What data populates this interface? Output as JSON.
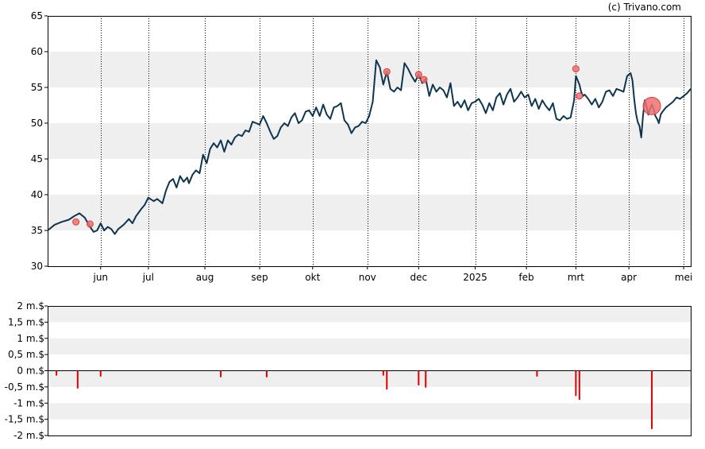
{
  "credit": "(c) Trivano.com",
  "colors": {
    "price_line": "#0d3550",
    "band": "#efefef",
    "marker_fill": "#f07070",
    "marker_stroke": "#d84040",
    "volume_bar": "#e00000",
    "grid": "#000000",
    "axis": "#000000"
  },
  "chart_data": [
    {
      "type": "line",
      "title": "",
      "xlabel": "",
      "ylabel": "",
      "ylim": [
        30,
        65
      ],
      "yticks": [
        "30",
        "35",
        "40",
        "45",
        "50",
        "55",
        "60",
        "65"
      ],
      "ytick_values": [
        30,
        35,
        40,
        45,
        50,
        55,
        60,
        65
      ],
      "shaded_bands": [
        [
          35,
          40
        ],
        [
          45,
          50
        ],
        [
          55,
          60
        ]
      ],
      "xlim": [
        0,
        364
      ],
      "month_labels": [
        "jun",
        "jul",
        "aug",
        "sep",
        "okt",
        "nov",
        "dec",
        "2025",
        "feb",
        "mrt",
        "apr",
        "mei"
      ],
      "month_positions": [
        30,
        57,
        89,
        120,
        150,
        181,
        210,
        242,
        271,
        299,
        329,
        360
      ],
      "grid": "vertical dotted at month starts",
      "series": [
        {
          "values": [
            [
              0,
              35.0
            ],
            [
              4,
              35.8
            ],
            [
              8,
              36.2
            ],
            [
              12,
              36.5
            ],
            [
              15,
              37.0
            ],
            [
              18,
              37.4
            ],
            [
              21,
              36.8
            ],
            [
              24,
              35.5
            ],
            [
              26,
              34.8
            ],
            [
              28,
              35.0
            ],
            [
              30,
              36.0
            ],
            [
              32,
              35.0
            ],
            [
              34,
              35.5
            ],
            [
              36,
              35.2
            ],
            [
              38,
              34.5
            ],
            [
              40,
              35.2
            ],
            [
              43,
              35.8
            ],
            [
              46,
              36.6
            ],
            [
              48,
              36.0
            ],
            [
              50,
              37.0
            ],
            [
              53,
              38.0
            ],
            [
              55,
              38.6
            ],
            [
              57,
              39.6
            ],
            [
              60,
              39.1
            ],
            [
              62,
              39.4
            ],
            [
              65,
              38.8
            ],
            [
              67,
              40.6
            ],
            [
              69,
              41.8
            ],
            [
              71,
              42.2
            ],
            [
              73,
              41.0
            ],
            [
              75,
              42.6
            ],
            [
              77,
              41.8
            ],
            [
              79,
              42.4
            ],
            [
              80,
              41.6
            ],
            [
              82,
              42.8
            ],
            [
              84,
              43.4
            ],
            [
              86,
              43.0
            ],
            [
              88,
              45.6
            ],
            [
              90,
              44.4
            ],
            [
              92,
              46.4
            ],
            [
              94,
              47.2
            ],
            [
              96,
              46.6
            ],
            [
              98,
              47.6
            ],
            [
              100,
              46.0
            ],
            [
              102,
              47.6
            ],
            [
              104,
              47.0
            ],
            [
              106,
              48.0
            ],
            [
              108,
              48.4
            ],
            [
              110,
              48.2
            ],
            [
              112,
              49.0
            ],
            [
              114,
              48.8
            ],
            [
              116,
              50.2
            ],
            [
              118,
              50.0
            ],
            [
              120,
              49.8
            ],
            [
              122,
              51.0
            ],
            [
              124,
              50.0
            ],
            [
              126,
              48.8
            ],
            [
              128,
              47.8
            ],
            [
              130,
              48.2
            ],
            [
              132,
              49.4
            ],
            [
              134,
              50.0
            ],
            [
              136,
              49.6
            ],
            [
              138,
              50.8
            ],
            [
              140,
              51.4
            ],
            [
              142,
              50.0
            ],
            [
              144,
              50.4
            ],
            [
              146,
              51.6
            ],
            [
              148,
              51.8
            ],
            [
              150,
              51.0
            ],
            [
              152,
              52.2
            ],
            [
              154,
              51.0
            ],
            [
              156,
              52.6
            ],
            [
              158,
              51.2
            ],
            [
              160,
              50.6
            ],
            [
              162,
              52.2
            ],
            [
              164,
              52.4
            ],
            [
              166,
              52.8
            ],
            [
              168,
              50.4
            ],
            [
              170,
              49.8
            ],
            [
              172,
              48.6
            ],
            [
              174,
              49.4
            ],
            [
              176,
              49.6
            ],
            [
              178,
              50.2
            ],
            [
              180,
              50.0
            ],
            [
              182,
              51.0
            ],
            [
              184,
              53.0
            ],
            [
              186,
              58.8
            ],
            [
              188,
              57.8
            ],
            [
              190,
              55.4
            ],
            [
              192,
              57.2
            ],
            [
              194,
              54.8
            ],
            [
              196,
              54.4
            ],
            [
              198,
              55.0
            ],
            [
              200,
              54.6
            ],
            [
              202,
              58.4
            ],
            [
              204,
              57.6
            ],
            [
              206,
              56.6
            ],
            [
              208,
              55.8
            ],
            [
              210,
              56.8
            ],
            [
              212,
              55.6
            ],
            [
              214,
              56.2
            ],
            [
              216,
              53.8
            ],
            [
              218,
              55.4
            ],
            [
              220,
              54.4
            ],
            [
              222,
              55.0
            ],
            [
              224,
              54.6
            ],
            [
              226,
              53.6
            ],
            [
              228,
              55.6
            ],
            [
              230,
              52.4
            ],
            [
              232,
              53.0
            ],
            [
              234,
              52.2
            ],
            [
              236,
              53.2
            ],
            [
              238,
              51.8
            ],
            [
              240,
              52.8
            ],
            [
              242,
              53.0
            ],
            [
              244,
              53.4
            ],
            [
              246,
              52.6
            ],
            [
              248,
              51.4
            ],
            [
              250,
              52.8
            ],
            [
              252,
              51.8
            ],
            [
              254,
              53.6
            ],
            [
              256,
              54.2
            ],
            [
              258,
              52.6
            ],
            [
              260,
              54.0
            ],
            [
              262,
              54.8
            ],
            [
              264,
              53.0
            ],
            [
              266,
              53.6
            ],
            [
              268,
              54.4
            ],
            [
              270,
              53.6
            ],
            [
              272,
              54.0
            ],
            [
              274,
              52.4
            ],
            [
              276,
              53.4
            ],
            [
              278,
              52.0
            ],
            [
              280,
              53.2
            ],
            [
              282,
              52.4
            ],
            [
              284,
              51.8
            ],
            [
              286,
              52.8
            ],
            [
              288,
              50.6
            ],
            [
              290,
              50.4
            ],
            [
              292,
              51.0
            ],
            [
              294,
              50.6
            ],
            [
              296,
              50.8
            ],
            [
              298,
              53.2
            ],
            [
              299,
              56.6
            ],
            [
              301,
              55.4
            ],
            [
              302,
              54.4
            ],
            [
              303,
              53.8
            ],
            [
              304,
              54.0
            ],
            [
              306,
              53.4
            ],
            [
              308,
              52.6
            ],
            [
              310,
              53.4
            ],
            [
              312,
              52.2
            ],
            [
              314,
              53.0
            ],
            [
              316,
              54.4
            ],
            [
              318,
              54.6
            ],
            [
              320,
              53.8
            ],
            [
              322,
              54.8
            ],
            [
              324,
              54.6
            ],
            [
              326,
              54.4
            ],
            [
              328,
              56.6
            ],
            [
              330,
              57.0
            ],
            [
              331,
              56.0
            ],
            [
              332,
              53.4
            ],
            [
              333,
              51.4
            ],
            [
              334,
              50.2
            ],
            [
              335,
              49.6
            ],
            [
              336,
              48.0
            ],
            [
              337,
              51.0
            ],
            [
              338,
              53.2
            ],
            [
              339,
              52.4
            ],
            [
              340,
              51.2
            ],
            [
              341,
              52.0
            ],
            [
              342,
              52.6
            ],
            [
              343,
              52.0
            ],
            [
              344,
              51.0
            ],
            [
              345,
              50.6
            ],
            [
              346,
              50.0
            ],
            [
              347,
              51.2
            ],
            [
              348,
              51.6
            ],
            [
              350,
              52.2
            ],
            [
              352,
              52.6
            ],
            [
              354,
              53.0
            ],
            [
              356,
              53.6
            ],
            [
              358,
              53.4
            ],
            [
              360,
              53.8
            ],
            [
              362,
              54.2
            ],
            [
              364,
              54.8
            ]
          ]
        }
      ],
      "markers": [
        {
          "x": 16,
          "y": 36.2,
          "size": "small"
        },
        {
          "x": 24,
          "y": 35.9,
          "size": "small"
        },
        {
          "x": 192,
          "y": 57.2,
          "size": "small"
        },
        {
          "x": 210,
          "y": 56.8,
          "size": "small"
        },
        {
          "x": 213,
          "y": 56.1,
          "size": "small"
        },
        {
          "x": 299,
          "y": 57.6,
          "size": "small"
        },
        {
          "x": 301,
          "y": 53.8,
          "size": "small"
        },
        {
          "x": 342,
          "y": 52.4,
          "size": "large"
        }
      ]
    },
    {
      "type": "bar",
      "title": "",
      "xlabel": "",
      "ylabel": "",
      "ylim": [
        -2,
        2
      ],
      "yticks": [
        "2 m.$",
        "1,5 m.$",
        "1 m.$",
        "0,5 m.$",
        "0 m.$",
        "-0,5 m.$",
        "-1 m.$",
        "-1,5 m.$",
        "-2 m.$"
      ],
      "ytick_values": [
        2,
        1.5,
        1,
        0.5,
        0,
        -0.5,
        -1,
        -1.5,
        -2
      ],
      "shaded_bands": [
        [
          -1.5,
          -1
        ],
        [
          -0.5,
          0
        ],
        [
          0.5,
          1
        ],
        [
          1.5,
          2
        ]
      ],
      "unit": "m.$",
      "x": [
        5,
        17,
        30,
        98,
        124,
        190,
        192,
        210,
        214,
        277,
        299,
        301,
        342
      ],
      "values": [
        -0.15,
        -0.55,
        -0.18,
        -0.2,
        -0.2,
        -0.15,
        -0.58,
        -0.45,
        -0.52,
        -0.18,
        -0.78,
        -0.9,
        -1.8
      ]
    }
  ]
}
